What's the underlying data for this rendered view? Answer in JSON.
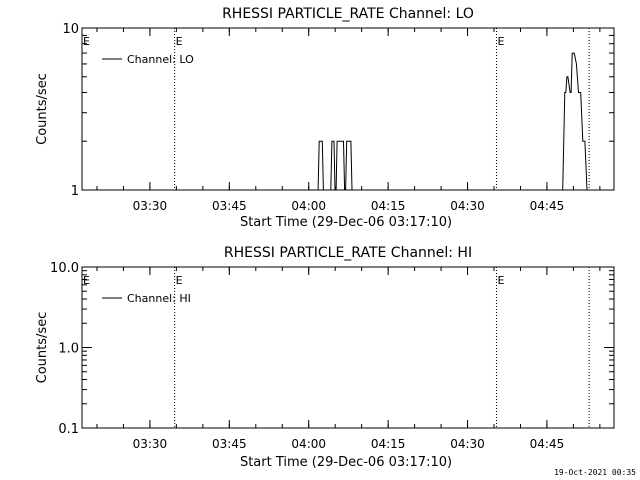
{
  "timestamp": "19-Oct-2021 00:35",
  "chart_data": [
    {
      "type": "line",
      "title": "RHESSI PARTICLE_RATE Channel: LO",
      "xlabel": "Start Time (29-Dec-06 03:17:10)",
      "ylabel": "Counts/sec",
      "yscale": "log",
      "x_unit": "minutes after 03:17:10",
      "xlim": [
        0,
        100.5
      ],
      "ylim": [
        1,
        10
      ],
      "x_ticks": [
        {
          "x": 12.83,
          "label": "03:30"
        },
        {
          "x": 27.83,
          "label": "03:45"
        },
        {
          "x": 42.83,
          "label": "04:00"
        },
        {
          "x": 57.83,
          "label": "04:15"
        },
        {
          "x": 72.83,
          "label": "04:30"
        },
        {
          "x": 87.83,
          "label": "04:45"
        }
      ],
      "y_ticks": [
        {
          "y": 1,
          "label": "1"
        },
        {
          "y": 10,
          "label": "10"
        }
      ],
      "event_lines": [
        {
          "x": 17.5,
          "label": "E"
        },
        {
          "x": 78.3,
          "label": "E"
        },
        {
          "x": 95.8,
          "label": ""
        }
      ],
      "legend": {
        "label": "Channel: LO",
        "position": "top-left"
      },
      "series": [
        {
          "name": "Channel: LO",
          "x": [
            0,
            44.6,
            44.8,
            45.4,
            45.6,
            47.0,
            47.2,
            47.6,
            47.8,
            48.0,
            48.2,
            49.4,
            49.6,
            49.8,
            50.0,
            50.8,
            51.0,
            90.8,
            91.2,
            91.4,
            91.6,
            91.8,
            92.2,
            92.4,
            92.6,
            93.0,
            93.4,
            93.8,
            94.2,
            94.6,
            95.0,
            95.4,
            95.8
          ],
          "y": [
            1,
            1,
            2,
            2,
            1,
            1,
            2,
            2,
            1,
            1,
            2,
            2,
            1,
            1,
            2,
            2,
            1,
            1,
            4,
            4,
            5,
            5,
            4,
            4,
            7,
            7,
            6,
            4,
            4,
            2,
            2,
            1,
            1
          ]
        }
      ]
    },
    {
      "type": "line",
      "title": "RHESSI PARTICLE_RATE Channel: HI",
      "xlabel": "Start Time (29-Dec-06 03:17:10)",
      "ylabel": "Counts/sec",
      "yscale": "log",
      "x_unit": "minutes after 03:17:10",
      "xlim": [
        0,
        100.5
      ],
      "ylim": [
        0.1,
        10
      ],
      "x_ticks": [
        {
          "x": 12.83,
          "label": "03:30"
        },
        {
          "x": 27.83,
          "label": "03:45"
        },
        {
          "x": 42.83,
          "label": "04:00"
        },
        {
          "x": 57.83,
          "label": "04:15"
        },
        {
          "x": 72.83,
          "label": "04:30"
        },
        {
          "x": 87.83,
          "label": "04:45"
        }
      ],
      "y_ticks": [
        {
          "y": 0.1,
          "label": "0.1"
        },
        {
          "y": 1,
          "label": "1.0"
        },
        {
          "y": 10,
          "label": "10.0"
        }
      ],
      "event_lines": [
        {
          "x": 17.5,
          "label": "E"
        },
        {
          "x": 78.3,
          "label": "E"
        },
        {
          "x": 95.8,
          "label": ""
        }
      ],
      "legend": {
        "label": "Channel: HI",
        "position": "top-left"
      },
      "series": [
        {
          "name": "Channel: HI",
          "x": [],
          "y": []
        }
      ]
    }
  ]
}
